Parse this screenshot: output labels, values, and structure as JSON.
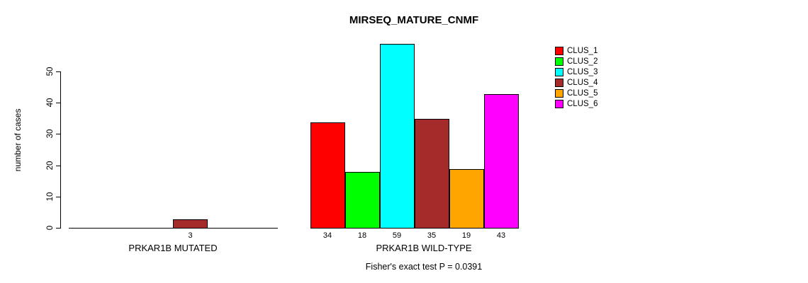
{
  "title": "MIRSEQ_MATURE_CNMF",
  "chart_data": {
    "type": "bar",
    "title": "MIRSEQ_MATURE_CNMF",
    "xlabel": "",
    "ylabel": "number of cases",
    "yticks": [
      0,
      10,
      20,
      30,
      40,
      50
    ],
    "ylim": [
      0,
      59
    ],
    "grid": false,
    "categories": [
      "CLUS_1",
      "CLUS_2",
      "CLUS_3",
      "CLUS_4",
      "CLUS_5",
      "CLUS_6"
    ],
    "colors": [
      "#ff0000",
      "#00ff00",
      "#00ffff",
      "#a52a2a",
      "#ffa500",
      "#ff00ff"
    ],
    "groups": [
      {
        "label": "PRKAR1B MUTATED",
        "values": [
          0,
          0,
          0,
          3,
          0,
          0
        ],
        "value_labels": [
          "",
          "",
          "",
          "3",
          "",
          ""
        ]
      },
      {
        "label": "PRKAR1B WILD-TYPE",
        "values": [
          34,
          18,
          59,
          35,
          19,
          43
        ],
        "value_labels": [
          "34",
          "18",
          "59",
          "35",
          "19",
          "43"
        ]
      }
    ],
    "legend": {
      "position": "right",
      "entries": [
        "CLUS_1",
        "CLUS_2",
        "CLUS_3",
        "CLUS_4",
        "CLUS_5",
        "CLUS_6"
      ]
    },
    "annotation": "Fisher's exact test P = 0.0391"
  }
}
